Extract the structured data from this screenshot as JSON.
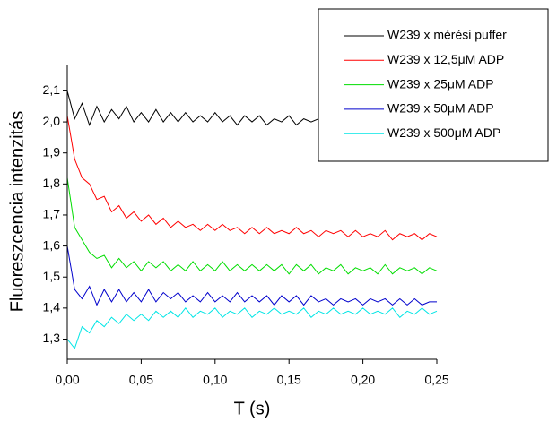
{
  "chart_data": {
    "type": "line",
    "xlabel": "T (s)",
    "ylabel": "Fluoreszcencia intenzitás",
    "xlim": [
      0,
      0.25
    ],
    "ylim": [
      1.235,
      2.185
    ],
    "xticks": [
      {
        "value": 0,
        "label": "0,00"
      },
      {
        "value": 0.05,
        "label": "0,05"
      },
      {
        "value": 0.1,
        "label": "0,10"
      },
      {
        "value": 0.15,
        "label": "0,15"
      },
      {
        "value": 0.2,
        "label": "0,20"
      },
      {
        "value": 0.25,
        "label": "0,25"
      }
    ],
    "yticks": [
      {
        "value": 1.3,
        "label": "1,3"
      },
      {
        "value": 1.4,
        "label": "1,4"
      },
      {
        "value": 1.5,
        "label": "1,5"
      },
      {
        "value": 1.6,
        "label": "1,6"
      },
      {
        "value": 1.7,
        "label": "1,7"
      },
      {
        "value": 1.8,
        "label": "1,8"
      },
      {
        "value": 1.9,
        "label": "1,9"
      },
      {
        "value": 2.0,
        "label": "2,0"
      },
      {
        "value": 2.1,
        "label": "2,1"
      }
    ],
    "legend": "upper right",
    "x": [
      0,
      0.005,
      0.01,
      0.015,
      0.02,
      0.025,
      0.03,
      0.035,
      0.04,
      0.045,
      0.05,
      0.055,
      0.06,
      0.065,
      0.07,
      0.075,
      0.08,
      0.085,
      0.09,
      0.095,
      0.1,
      0.105,
      0.11,
      0.115,
      0.12,
      0.125,
      0.13,
      0.135,
      0.14,
      0.145,
      0.15,
      0.155,
      0.16,
      0.165,
      0.17,
      0.175,
      0.18,
      0.185,
      0.19,
      0.195,
      0.2,
      0.205,
      0.21,
      0.215,
      0.22,
      0.225,
      0.23,
      0.235,
      0.24,
      0.245,
      0.25
    ],
    "series": [
      {
        "name": "W239 x mérési puffer",
        "color": "#000000",
        "values": [
          2.1,
          2.01,
          2.06,
          1.99,
          2.05,
          2.0,
          2.04,
          2.01,
          2.05,
          2.0,
          2.03,
          2.0,
          2.04,
          2.0,
          2.03,
          2.0,
          2.03,
          2.0,
          2.02,
          2.0,
          2.03,
          2.0,
          2.02,
          1.99,
          2.02,
          2.0,
          2.02,
          1.99,
          2.01,
          2.0,
          2.02,
          1.99,
          2.01,
          2.0,
          2.01,
          2.0,
          2.01,
          2.0,
          2.01,
          2.0,
          2.01,
          2.0,
          2.01,
          2.0,
          2.01,
          2.0,
          2.01,
          2.0,
          2.01,
          2.0,
          2.01
        ]
      },
      {
        "name": "W239 x 12,5μM ADP",
        "color": "#ff0000",
        "values": [
          2.02,
          1.88,
          1.82,
          1.8,
          1.75,
          1.76,
          1.71,
          1.73,
          1.69,
          1.71,
          1.68,
          1.7,
          1.67,
          1.69,
          1.66,
          1.68,
          1.66,
          1.67,
          1.65,
          1.67,
          1.65,
          1.67,
          1.65,
          1.66,
          1.64,
          1.66,
          1.64,
          1.66,
          1.64,
          1.65,
          1.64,
          1.66,
          1.64,
          1.65,
          1.63,
          1.65,
          1.64,
          1.65,
          1.63,
          1.65,
          1.63,
          1.64,
          1.63,
          1.65,
          1.62,
          1.64,
          1.63,
          1.64,
          1.62,
          1.64,
          1.63
        ]
      },
      {
        "name": "W239 x 25μM ADP",
        "color": "#00dd00",
        "values": [
          1.82,
          1.66,
          1.62,
          1.58,
          1.56,
          1.57,
          1.53,
          1.56,
          1.53,
          1.55,
          1.52,
          1.55,
          1.53,
          1.55,
          1.52,
          1.54,
          1.52,
          1.55,
          1.52,
          1.54,
          1.52,
          1.55,
          1.52,
          1.54,
          1.52,
          1.54,
          1.52,
          1.54,
          1.52,
          1.54,
          1.51,
          1.54,
          1.52,
          1.54,
          1.51,
          1.53,
          1.52,
          1.54,
          1.51,
          1.53,
          1.52,
          1.53,
          1.51,
          1.54,
          1.51,
          1.53,
          1.52,
          1.53,
          1.51,
          1.53,
          1.52
        ]
      },
      {
        "name": "W239 x 50μM ADP",
        "color": "#0000cc",
        "values": [
          1.6,
          1.46,
          1.43,
          1.47,
          1.41,
          1.46,
          1.42,
          1.46,
          1.42,
          1.45,
          1.42,
          1.46,
          1.42,
          1.45,
          1.43,
          1.45,
          1.42,
          1.44,
          1.42,
          1.45,
          1.42,
          1.44,
          1.42,
          1.45,
          1.42,
          1.44,
          1.42,
          1.44,
          1.41,
          1.44,
          1.42,
          1.44,
          1.41,
          1.44,
          1.42,
          1.43,
          1.41,
          1.43,
          1.42,
          1.43,
          1.41,
          1.43,
          1.42,
          1.43,
          1.41,
          1.43,
          1.41,
          1.43,
          1.41,
          1.42,
          1.42
        ]
      },
      {
        "name": "W239 x 500μM ADP",
        "color": "#00e5e5",
        "values": [
          1.3,
          1.27,
          1.34,
          1.32,
          1.36,
          1.34,
          1.37,
          1.35,
          1.38,
          1.36,
          1.38,
          1.36,
          1.39,
          1.37,
          1.39,
          1.37,
          1.4,
          1.37,
          1.39,
          1.38,
          1.4,
          1.37,
          1.39,
          1.38,
          1.4,
          1.37,
          1.39,
          1.38,
          1.4,
          1.38,
          1.39,
          1.38,
          1.4,
          1.37,
          1.39,
          1.38,
          1.4,
          1.38,
          1.39,
          1.38,
          1.4,
          1.38,
          1.39,
          1.38,
          1.4,
          1.37,
          1.39,
          1.38,
          1.4,
          1.38,
          1.39
        ]
      }
    ]
  }
}
